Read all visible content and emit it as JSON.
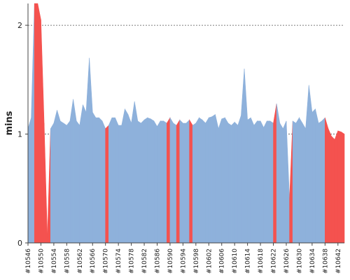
{
  "chart_data": {
    "type": "area",
    "title": "",
    "xlabel": "",
    "ylabel": "mins",
    "ylim": [
      0,
      2.2
    ],
    "yticks": [
      0,
      1,
      2
    ],
    "grid": {
      "y": true,
      "x": false
    },
    "legend": "none",
    "colors": {
      "normal": "#8eb1db",
      "failed": "#f4524f"
    },
    "x": [
      10546,
      10547,
      10548,
      10549,
      10550,
      10551,
      10552,
      10553,
      10554,
      10555,
      10556,
      10557,
      10558,
      10559,
      10560,
      10561,
      10562,
      10563,
      10564,
      10565,
      10566,
      10567,
      10568,
      10569,
      10570,
      10571,
      10572,
      10573,
      10574,
      10575,
      10576,
      10577,
      10578,
      10579,
      10580,
      10581,
      10582,
      10583,
      10584,
      10585,
      10586,
      10587,
      10588,
      10589,
      10590,
      10591,
      10592,
      10593,
      10594,
      10595,
      10596,
      10597,
      10598,
      10599,
      10600,
      10601,
      10602,
      10603,
      10604,
      10605,
      10606,
      10607,
      10608,
      10609,
      10610,
      10611,
      10612,
      10613,
      10614,
      10615,
      10616,
      10617,
      10618,
      10619,
      10620,
      10621,
      10622,
      10623,
      10624,
      10625,
      10626,
      10627,
      10628,
      10629,
      10630,
      10631,
      10632,
      10633,
      10634,
      10635,
      10636,
      10637,
      10638,
      10639,
      10640,
      10641,
      10642,
      10643,
      10644
    ],
    "values": [
      1.05,
      1.15,
      2.2,
      2.2,
      2.05,
      1.1,
      0.05,
      1.05,
      1.1,
      1.22,
      1.12,
      1.1,
      1.08,
      1.12,
      1.32,
      1.12,
      1.08,
      1.27,
      1.2,
      1.7,
      1.2,
      1.15,
      1.15,
      1.12,
      1.05,
      1.08,
      1.15,
      1.15,
      1.08,
      1.08,
      1.23,
      1.18,
      1.1,
      1.3,
      1.12,
      1.1,
      1.13,
      1.15,
      1.14,
      1.12,
      1.07,
      1.12,
      1.12,
      1.1,
      1.15,
      1.1,
      1.08,
      1.13,
      1.1,
      1.1,
      1.13,
      1.08,
      1.1,
      1.15,
      1.13,
      1.1,
      1.15,
      1.16,
      1.18,
      1.05,
      1.14,
      1.15,
      1.1,
      1.08,
      1.11,
      1.08,
      1.17,
      1.6,
      1.13,
      1.15,
      1.08,
      1.12,
      1.12,
      1.06,
      1.12,
      1.12,
      1.1,
      1.28,
      1.1,
      1.05,
      1.12,
      0.4,
      1.12,
      1.1,
      1.15,
      1.1,
      1.05,
      1.45,
      1.2,
      1.23,
      1.1,
      1.12,
      1.15,
      1.05,
      0.98,
      0.95,
      1.03,
      1.02,
      1.0
    ],
    "status": [
      "normal",
      "normal",
      "failed",
      "failed",
      "failed",
      "failed",
      "failed",
      "normal",
      "normal",
      "normal",
      "normal",
      "normal",
      "normal",
      "normal",
      "normal",
      "normal",
      "normal",
      "normal",
      "normal",
      "normal",
      "normal",
      "normal",
      "normal",
      "normal",
      "failed",
      "normal",
      "normal",
      "normal",
      "normal",
      "normal",
      "normal",
      "normal",
      "normal",
      "normal",
      "normal",
      "normal",
      "normal",
      "normal",
      "normal",
      "normal",
      "normal",
      "normal",
      "normal",
      "failed",
      "normal",
      "normal",
      "failed",
      "normal",
      "normal",
      "normal",
      "failed",
      "normal",
      "normal",
      "normal",
      "normal",
      "normal",
      "normal",
      "normal",
      "normal",
      "normal",
      "normal",
      "normal",
      "normal",
      "normal",
      "normal",
      "normal",
      "normal",
      "normal",
      "normal",
      "normal",
      "normal",
      "normal",
      "normal",
      "normal",
      "normal",
      "normal",
      "failed",
      "normal",
      "normal",
      "normal",
      "normal",
      "failed",
      "normal",
      "normal",
      "normal",
      "normal",
      "normal",
      "normal",
      "normal",
      "normal",
      "normal",
      "normal",
      "failed",
      "failed",
      "failed",
      "failed",
      "failed",
      "failed",
      "failed"
    ],
    "xtick_labels": [
      "#10546",
      "#10550",
      "#10554",
      "#10558",
      "#10562",
      "#10566",
      "#10570",
      "#10574",
      "#10578",
      "#10582",
      "#10586",
      "#10590",
      "#10594",
      "#10598",
      "#10602",
      "#10606",
      "#10610",
      "#10614",
      "#10618",
      "#10622",
      "#10626",
      "#10630",
      "#10634",
      "#10638",
      "#10642"
    ],
    "ytick_labels": [
      "0",
      "1",
      "2"
    ]
  }
}
